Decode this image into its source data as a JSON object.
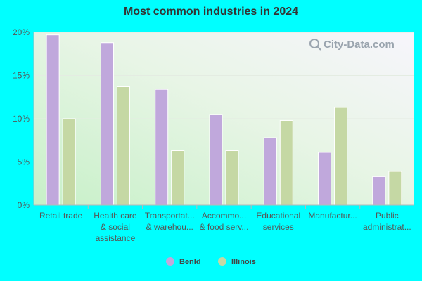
{
  "watermark": "City-Data.com",
  "chart_data": {
    "type": "bar",
    "title": "Most common industries in 2024",
    "categories": [
      [
        "Retail trade"
      ],
      [
        "Health care",
        "& social",
        "assistance"
      ],
      [
        "Transportat...",
        "& warehou..."
      ],
      [
        "Accommo...",
        "& food serv..."
      ],
      [
        "Educational",
        "services"
      ],
      [
        "Manufactur..."
      ],
      [
        "Public",
        "administrat..."
      ]
    ],
    "series": [
      {
        "name": "Benld",
        "color": "#c0a8dc",
        "values": [
          19.7,
          18.8,
          13.4,
          10.5,
          7.8,
          6.1,
          3.3
        ]
      },
      {
        "name": "Illinois",
        "color": "#c5d8a4",
        "values": [
          10.0,
          13.7,
          6.3,
          6.3,
          9.8,
          11.3,
          3.9
        ]
      }
    ],
    "ylim": [
      0,
      20
    ],
    "yticks": [
      "0%",
      "5%",
      "10%",
      "15%",
      "20%"
    ],
    "xlabel": "",
    "ylabel": "",
    "grid": true,
    "legend_position": "bottom-center"
  }
}
